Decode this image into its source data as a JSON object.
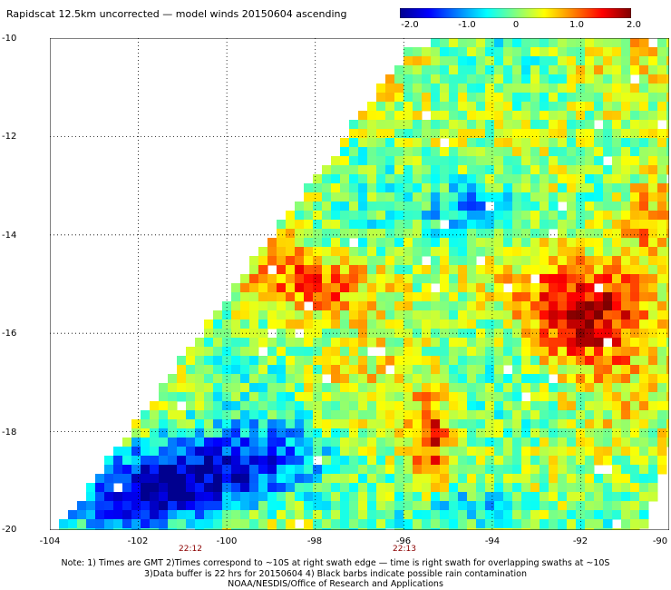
{
  "title": "Rapidscat 12.5km uncorrected — model winds 20150604 ascending",
  "colorbar": {
    "ticks": [
      {
        "label": "-2.0",
        "value": -2.0
      },
      {
        "label": "-1.0",
        "value": -1.0
      },
      {
        "label": "0",
        "value": 0
      },
      {
        "label": "1.0",
        "value": 1.0
      },
      {
        "label": "2.0",
        "value": 2.0
      }
    ],
    "colors": [
      "#00008f",
      "#0000ff",
      "#0080ff",
      "#00ffff",
      "#80ff80",
      "#ffff00",
      "#ff8000",
      "#ff0000",
      "#800000"
    ]
  },
  "map": {
    "lon_range": [
      -104,
      -90
    ],
    "lat_range": [
      -20,
      -10
    ],
    "x_ticks": [
      "-104",
      "-102",
      "-100",
      "-98",
      "-96",
      "-94",
      "-92",
      "-90"
    ],
    "y_ticks": [
      "-10",
      "-12",
      "-14",
      "-16",
      "-18",
      "-20"
    ],
    "swath_time_labels": [
      {
        "text": "22:12",
        "lon": -101.1
      },
      {
        "text": "22:13",
        "lon": -96.5
      }
    ]
  },
  "notes": [
    "Note: 1) Times are GMT 2)Times correspond to ~10S at right swath edge — time is right swath for overlapping swaths at ~10S",
    "3)Data buffer is 22 hrs for 20150604 4) Black barbs indicate possible rain contamination",
    "NOAA/NESDIS/Office of Research and Applications"
  ]
}
